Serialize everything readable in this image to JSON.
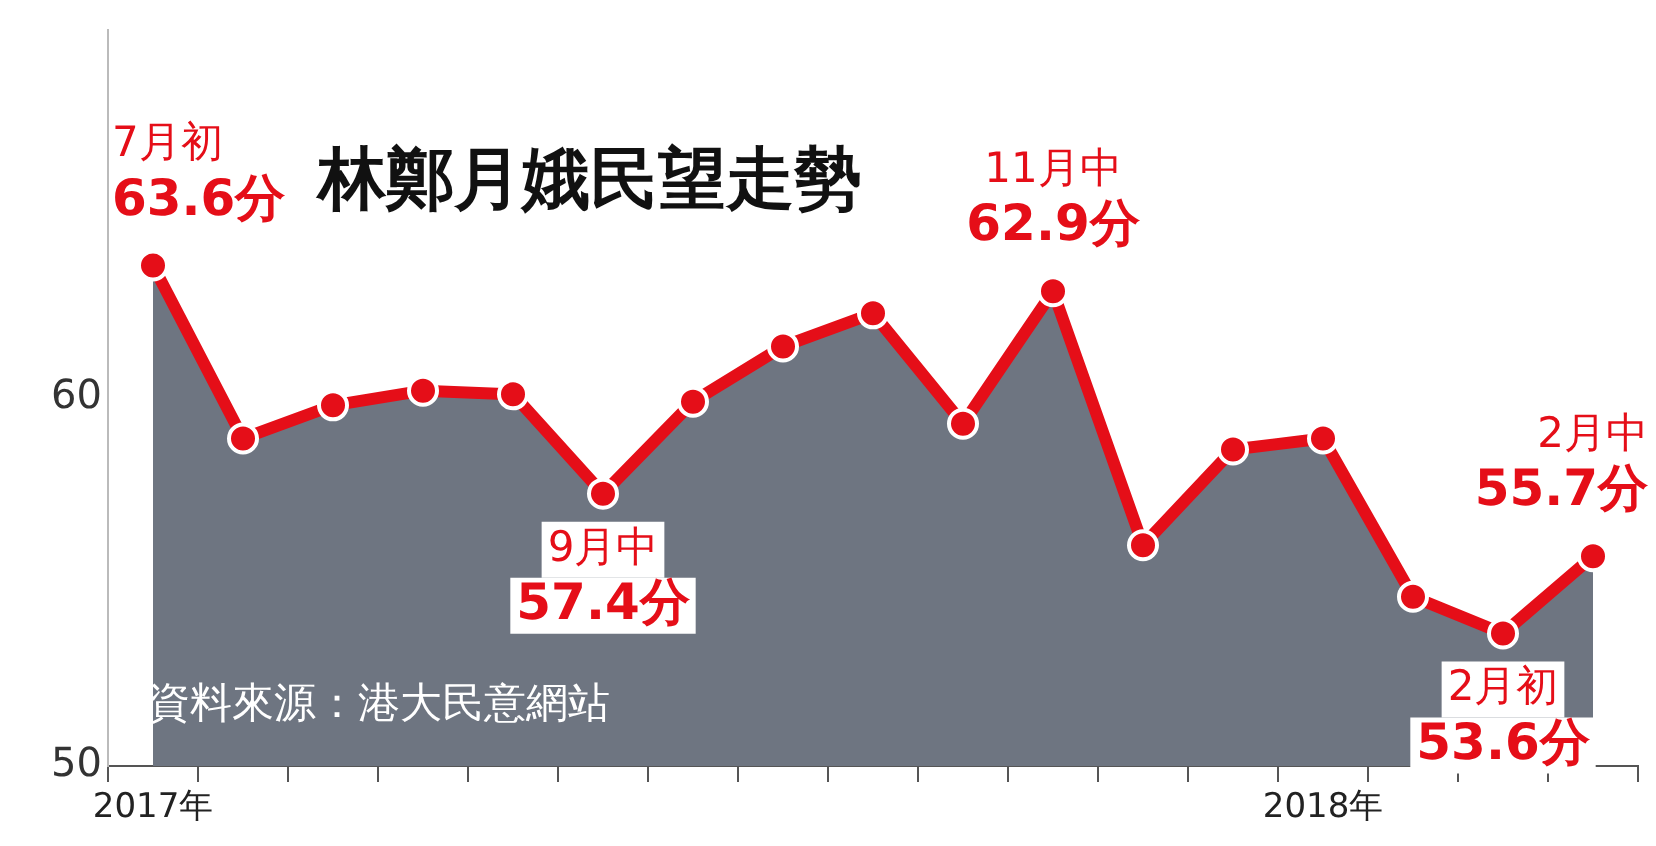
{
  "chart_data": {
    "type": "area",
    "title": "林鄭月娥民望走勢",
    "categories": [
      "2017年",
      null,
      null,
      null,
      null,
      null,
      null,
      null,
      null,
      null,
      null,
      null,
      null,
      "2018年",
      null,
      null,
      null
    ],
    "series": [
      {
        "color": "#e50e18",
        "values": [
          63.6,
          58.9,
          59.8,
          60.2,
          60.1,
          57.4,
          59.9,
          61.4,
          62.3,
          59.3,
          62.9,
          56.0,
          58.6,
          58.9,
          54.6,
          53.6,
          55.7
        ],
        "value_labels": [
          "7月初\n63.6分",
          null,
          null,
          null,
          null,
          "9月中\n57.4分",
          null,
          null,
          null,
          null,
          "11月中\n62.9分",
          null,
          null,
          null,
          null,
          "2月初\n53.6分",
          "2月中\n55.7分"
        ]
      }
    ],
    "ylim": [
      50,
      70
    ],
    "yticks": [
      50,
      60
    ],
    "grid": false,
    "legend": false,
    "marker": "circle",
    "annotations": [
      "資料來源：港大民意網站"
    ]
  }
}
